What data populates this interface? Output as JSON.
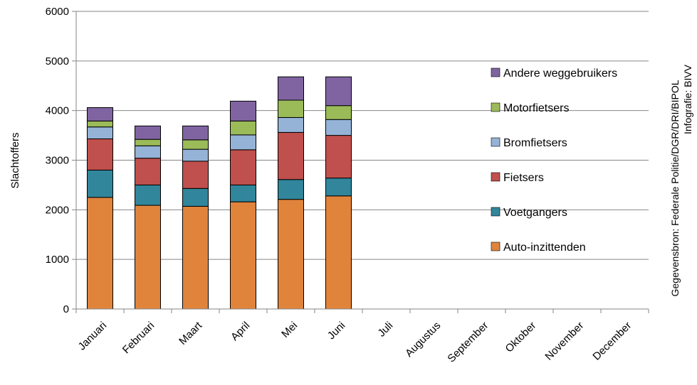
{
  "chart_data": {
    "type": "bar",
    "stacked": true,
    "categories": [
      "Januari",
      "Februari",
      "Maart",
      "April",
      "Mei",
      "Juni",
      "Juli",
      "Augustus",
      "September",
      "Oktober",
      "November",
      "December"
    ],
    "series": [
      {
        "name": "Auto-inzittenden",
        "color": "#E0843C",
        "values": [
          2250,
          2090,
          2070,
          2160,
          2210,
          2280,
          null,
          null,
          null,
          null,
          null,
          null
        ]
      },
      {
        "name": "Voetgangers",
        "color": "#31869B",
        "values": [
          550,
          410,
          360,
          340,
          400,
          360,
          null,
          null,
          null,
          null,
          null,
          null
        ]
      },
      {
        "name": "Fietsers",
        "color": "#C0504D",
        "values": [
          630,
          540,
          550,
          710,
          950,
          860,
          null,
          null,
          null,
          null,
          null,
          null
        ]
      },
      {
        "name": "Bromfietsers",
        "color": "#95B3D7",
        "values": [
          240,
          250,
          240,
          300,
          300,
          320,
          null,
          null,
          null,
          null,
          null,
          null
        ]
      },
      {
        "name": "Motorfietsers",
        "color": "#9BBB59",
        "values": [
          120,
          130,
          190,
          280,
          350,
          280,
          null,
          null,
          null,
          null,
          null,
          null
        ]
      },
      {
        "name": "Andere weggebruikers",
        "color": "#8064A2",
        "values": [
          270,
          270,
          280,
          400,
          470,
          580,
          null,
          null,
          null,
          null,
          null,
          null
        ]
      }
    ],
    "ylabel": "Slachtoffers",
    "xlabel": "",
    "ylim": [
      0,
      6000
    ],
    "yticks": [
      0,
      1000,
      2000,
      3000,
      4000,
      5000,
      6000
    ],
    "grid": true,
    "legend_position": "right",
    "legend_order": [
      "Andere weggebruikers",
      "Motorfietsers",
      "Bromfietsers",
      "Fietsers",
      "Voetgangers",
      "Auto-inzittenden"
    ],
    "source_lines": [
      "Gegevensbron: Federale Politie/DGR/DRI/BIPOL",
      "Infografie: BIVV"
    ]
  }
}
